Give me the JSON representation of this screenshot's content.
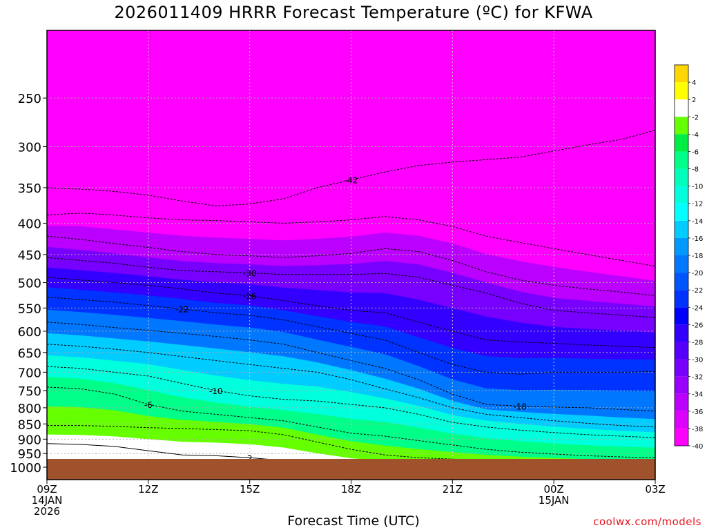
{
  "title": "2026011409 HRRR Forecast Temperature (ºC) for KFWA",
  "credit": "coolwx.com/models",
  "chart_data": {
    "type": "heatmap",
    "title": "2026011409 HRRR Forecast Temperature (ºC) for KFWA",
    "xlabel": "Forecast Time (UTC)",
    "ylabel": "",
    "y_scale": "log-pressure",
    "y_unit": "hPa",
    "ylim": [
      1000,
      200
    ],
    "y_ticks": [
      250,
      300,
      350,
      400,
      450,
      500,
      550,
      600,
      650,
      700,
      750,
      800,
      850,
      900,
      950,
      1000
    ],
    "x_hours": [
      0,
      3,
      6,
      9,
      12,
      15,
      18
    ],
    "x_ticks": [
      {
        "hour": 0,
        "lines": [
          "09Z",
          "14JAN",
          "2026"
        ]
      },
      {
        "hour": 3,
        "lines": [
          "12Z"
        ]
      },
      {
        "hour": 6,
        "lines": [
          "15Z"
        ]
      },
      {
        "hour": 9,
        "lines": [
          "18Z"
        ]
      },
      {
        "hour": 12,
        "lines": [
          "21Z"
        ]
      },
      {
        "hour": 15,
        "lines": [
          "00Z",
          "15JAN"
        ]
      },
      {
        "hour": 18,
        "lines": [
          "03Z"
        ]
      }
    ],
    "grid": true,
    "legend": "right colorbar",
    "colorbar_labels": [
      "4",
      "2",
      "-2",
      "-4",
      "-6",
      "-8",
      "-10",
      "-12",
      "-14",
      "-16",
      "-18",
      "-20",
      "-22",
      "-24",
      "-26",
      "-28",
      "-30",
      "-32",
      "-34",
      "-36",
      "-38",
      "-40"
    ],
    "colorbar_colors": [
      "#ffd700",
      "#ffff00",
      "#ffffff",
      "#66ff00",
      "#00ee44",
      "#00ff88",
      "#00ffbb",
      "#00ffdd",
      "#00ffff",
      "#00ccff",
      "#0099ff",
      "#0077ff",
      "#0055ff",
      "#0033ff",
      "#0000ff",
      "#3300ff",
      "#5500ff",
      "#7700ff",
      "#9900ff",
      "#bb00ff",
      "#dd00ff",
      "#ff00ff"
    ],
    "isotherms": [
      {
        "value": -42,
        "label": "-42",
        "p": [
          350,
          352,
          355,
          360,
          368,
          375,
          372,
          365,
          350,
          340,
          330,
          322,
          318,
          315,
          312,
          305,
          298,
          292,
          282
        ]
      },
      {
        "value": -38,
        "label": "",
        "p": [
          388,
          385,
          388,
          392,
          395,
          396,
          398,
          400,
          398,
          395,
          390,
          395,
          405,
          420,
          430,
          440,
          450,
          460,
          470
        ]
      },
      {
        "value": -34,
        "label": "",
        "p": [
          420,
          425,
          432,
          438,
          445,
          450,
          452,
          455,
          452,
          448,
          440,
          445,
          460,
          480,
          495,
          505,
          512,
          518,
          525
        ]
      },
      {
        "value": -30,
        "label": "-30",
        "p": [
          455,
          460,
          465,
          472,
          478,
          480,
          482,
          485,
          485,
          485,
          483,
          490,
          505,
          520,
          540,
          555,
          560,
          565,
          570
        ]
      },
      {
        "value": -26,
        "label": "-26",
        "p": [
          490,
          495,
          500,
          505,
          512,
          520,
          525,
          535,
          545,
          555,
          560,
          580,
          600,
          620,
          625,
          628,
          632,
          635,
          638
        ]
      },
      {
        "value": -22,
        "label": "-22",
        "p": [
          528,
          533,
          538,
          545,
          552,
          560,
          565,
          575,
          590,
          605,
          620,
          650,
          680,
          700,
          705,
          700,
          700,
          700,
          698
        ]
      },
      {
        "value": -18,
        "label": "-18",
        "p": [
          580,
          585,
          592,
          598,
          605,
          612,
          620,
          630,
          650,
          670,
          690,
          720,
          760,
          790,
          795,
          798,
          800,
          805,
          810
        ]
      },
      {
        "value": -14,
        "label": "",
        "p": [
          630,
          635,
          642,
          650,
          660,
          670,
          680,
          690,
          700,
          720,
          745,
          770,
          800,
          820,
          830,
          840,
          848,
          855,
          860
        ]
      },
      {
        "value": -10,
        "label": "-10",
        "p": [
          685,
          690,
          700,
          710,
          730,
          750,
          765,
          775,
          780,
          790,
          800,
          820,
          845,
          860,
          870,
          878,
          885,
          890,
          895
        ]
      },
      {
        "value": -6,
        "label": "-6",
        "p": [
          740,
          745,
          760,
          790,
          810,
          820,
          830,
          840,
          860,
          880,
          890,
          905,
          920,
          935,
          945,
          952,
          958,
          962,
          965
        ]
      },
      {
        "value": -2,
        "label": "",
        "p": [
          855,
          855,
          858,
          862,
          865,
          868,
          872,
          885,
          910,
          935,
          955,
          965,
          970,
          975,
          978,
          980,
          982,
          985,
          985
        ]
      },
      {
        "value": 2,
        "label": "2",
        "p": [
          915,
          918,
          925,
          940,
          955,
          958,
          965,
          975,
          990,
          1000,
          1000,
          1000,
          1000,
          1000,
          1000,
          1000,
          1000,
          1000,
          1000
        ]
      }
    ]
  }
}
